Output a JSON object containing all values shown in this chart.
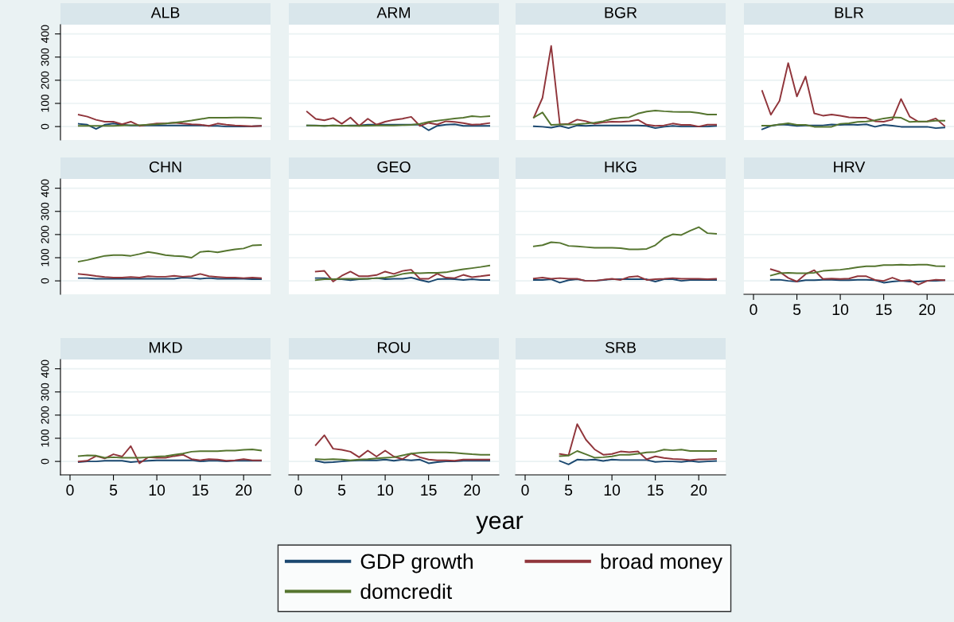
{
  "chart_data": [
    {
      "type": "line",
      "title": "ALB",
      "x": [
        1,
        2,
        3,
        4,
        5,
        6,
        7,
        8,
        9,
        10,
        11,
        12,
        13,
        14,
        15,
        16,
        17,
        18,
        19,
        20,
        21,
        22
      ],
      "xlim": [
        -1.1,
        23.1
      ],
      "ylim": [
        -58,
        440
      ],
      "yticks": [
        0,
        100,
        200,
        300,
        400
      ],
      "grid": "y",
      "tick_labels": "y",
      "series": [
        {
          "color": "#1a476f",
          "values": [
            12,
            8,
            -10,
            8,
            13,
            8,
            5,
            5,
            5,
            5,
            5,
            5,
            5,
            5,
            5,
            3,
            3,
            0,
            0,
            0,
            1,
            3
          ]
        },
        {
          "color": "#90353b",
          "values": [
            51,
            43,
            29,
            21,
            21,
            10,
            21,
            3,
            8,
            13,
            13,
            17,
            13,
            10,
            8,
            3,
            13,
            8,
            5,
            3,
            1,
            3
          ]
        },
        {
          "color": "#55752f",
          "values": [
            3,
            3,
            3,
            3,
            3,
            5,
            6,
            6,
            8,
            10,
            13,
            17,
            21,
            26,
            32,
            38,
            38,
            38,
            39,
            39,
            38,
            36
          ]
        }
      ]
    },
    {
      "type": "line",
      "title": "ARM",
      "x": [
        1,
        2,
        3,
        4,
        5,
        6,
        7,
        8,
        9,
        10,
        11,
        12,
        13,
        14,
        15,
        16,
        17,
        18,
        19,
        20,
        21,
        22
      ],
      "xlim": [
        -1.1,
        23.1
      ],
      "ylim": [
        -58,
        440
      ],
      "yticks": [
        0,
        100,
        200,
        300,
        400
      ],
      "grid": "y",
      "tick_labels": false,
      "series": [
        {
          "color": "#1a476f",
          "values": [
            5,
            5,
            3,
            5,
            3,
            5,
            5,
            8,
            8,
            8,
            8,
            8,
            8,
            8,
            -16,
            3,
            8,
            10,
            3,
            3,
            3,
            3
          ]
        },
        {
          "color": "#90353b",
          "values": [
            64,
            33,
            27,
            37,
            12,
            39,
            3,
            34,
            8,
            21,
            29,
            34,
            42,
            3,
            16,
            9,
            23,
            20,
            15,
            8,
            10,
            15
          ]
        },
        {
          "color": "#55752f",
          "values": [
            5,
            4,
            3,
            5,
            4,
            3,
            3,
            4,
            5,
            5,
            5,
            6,
            7,
            12,
            20,
            25,
            30,
            35,
            38,
            45,
            42,
            45
          ]
        }
      ]
    },
    {
      "type": "line",
      "title": "BGR",
      "x": [
        1,
        2,
        3,
        4,
        5,
        6,
        7,
        8,
        9,
        10,
        11,
        12,
        13,
        14,
        15,
        16,
        17,
        18,
        19,
        20,
        21,
        22
      ],
      "xlim": [
        -1.1,
        23.1
      ],
      "ylim": [
        -58,
        440
      ],
      "yticks": [
        0,
        100,
        200,
        300,
        400
      ],
      "grid": "y",
      "tick_labels": false,
      "series": [
        {
          "color": "#1a476f",
          "values": [
            1,
            -1,
            -5,
            3,
            -7,
            5,
            3,
            5,
            5,
            5,
            5,
            5,
            5,
            3,
            -7,
            -1,
            3,
            0,
            0,
            0,
            0,
            3
          ]
        },
        {
          "color": "#90353b",
          "values": [
            39,
            124,
            348,
            9,
            12,
            30,
            23,
            12,
            18,
            21,
            20,
            23,
            29,
            8,
            3,
            5,
            13,
            7,
            7,
            0,
            8,
            8
          ]
        },
        {
          "color": "#55752f",
          "values": [
            39,
            61,
            7,
            9,
            9,
            10,
            13,
            17,
            23,
            33,
            38,
            40,
            56,
            65,
            69,
            66,
            64,
            63,
            63,
            59,
            52,
            52
          ]
        }
      ]
    },
    {
      "type": "line",
      "title": "BLR",
      "x": [
        1,
        2,
        3,
        4,
        5,
        6,
        7,
        8,
        9,
        10,
        11,
        12,
        13,
        14,
        15,
        16,
        17,
        18,
        19,
        20,
        21,
        22
      ],
      "xlim": [
        -1.1,
        23.1
      ],
      "ylim": [
        -58,
        440
      ],
      "yticks": [
        0,
        100,
        200,
        300,
        400
      ],
      "grid": "y",
      "tick_labels": false,
      "series": [
        {
          "color": "#1a476f",
          "values": [
            -12,
            3,
            9,
            7,
            3,
            5,
            5,
            5,
            9,
            7,
            9,
            7,
            10,
            -1,
            7,
            4,
            -1,
            -1,
            -1,
            -1,
            -7,
            -4
          ]
        },
        {
          "color": "#90353b",
          "values": [
            154,
            51,
            111,
            274,
            130,
            216,
            57,
            47,
            52,
            47,
            40,
            38,
            38,
            23,
            21,
            30,
            119,
            43,
            21,
            22,
            35,
            3
          ]
        },
        {
          "color": "#55752f",
          "values": [
            4,
            4,
            9,
            14,
            7,
            7,
            -1,
            -1,
            -1,
            12,
            14,
            20,
            22,
            27,
            35,
            40,
            38,
            20,
            22,
            22,
            25,
            25
          ]
        }
      ]
    },
    {
      "type": "line",
      "title": "CHN",
      "x": [
        1,
        2,
        3,
        4,
        5,
        6,
        7,
        8,
        9,
        10,
        11,
        12,
        13,
        14,
        15,
        16,
        17,
        18,
        19,
        20,
        21,
        22
      ],
      "xlim": [
        -1.1,
        23.1
      ],
      "ylim": [
        -58,
        440
      ],
      "yticks": [
        0,
        100,
        200,
        300,
        400
      ],
      "grid": "y",
      "tick_labels": "y",
      "series": [
        {
          "color": "#1a476f",
          "values": [
            12,
            12,
            9,
            9,
            9,
            9,
            9,
            9,
            9,
            9,
            9,
            9,
            14,
            12,
            9,
            12,
            9,
            9,
            9,
            9,
            7,
            7
          ]
        },
        {
          "color": "#90353b",
          "values": [
            30,
            26,
            21,
            17,
            14,
            14,
            17,
            14,
            20,
            18,
            18,
            22,
            18,
            20,
            30,
            20,
            17,
            14,
            14,
            12,
            14,
            12
          ]
        },
        {
          "color": "#55752f",
          "values": [
            83,
            90,
            99,
            108,
            111,
            111,
            108,
            116,
            125,
            119,
            111,
            108,
            106,
            100,
            125,
            128,
            123,
            130,
            136,
            140,
            153,
            155
          ]
        }
      ]
    },
    {
      "type": "line",
      "title": "GEO",
      "x": [
        2,
        3,
        4,
        5,
        6,
        7,
        8,
        9,
        10,
        11,
        12,
        13,
        14,
        15,
        16,
        17,
        18,
        19,
        20,
        21,
        22
      ],
      "xlim": [
        -1.1,
        23.1
      ],
      "ylim": [
        -58,
        440
      ],
      "yticks": [
        0,
        100,
        200,
        300,
        400
      ],
      "grid": "y",
      "tick_labels": false,
      "series": [
        {
          "color": "#1a476f",
          "values": [
            12,
            12,
            7,
            7,
            3,
            7,
            9,
            12,
            7,
            9,
            9,
            14,
            4,
            -5,
            7,
            9,
            7,
            4,
            7,
            4,
            4
          ]
        },
        {
          "color": "#90353b",
          "values": [
            40,
            43,
            -3,
            22,
            40,
            20,
            20,
            25,
            40,
            30,
            43,
            48,
            9,
            9,
            31,
            14,
            12,
            26,
            16,
            20,
            25
          ]
        },
        {
          "color": "#55752f",
          "values": [
            3,
            7,
            7,
            9,
            9,
            9,
            9,
            12,
            14,
            20,
            30,
            35,
            33,
            35,
            35,
            37,
            44,
            50,
            55,
            60,
            66
          ]
        }
      ]
    },
    {
      "type": "line",
      "title": "HKG",
      "x": [
        1,
        2,
        3,
        4,
        5,
        6,
        7,
        8,
        9,
        10,
        11,
        12,
        13,
        14,
        15,
        16,
        17,
        18,
        19,
        20,
        21,
        22
      ],
      "xlim": [
        -1.1,
        23.1
      ],
      "ylim": [
        -58,
        440
      ],
      "yticks": [
        0,
        100,
        200,
        300,
        400
      ],
      "grid": "y",
      "tick_labels": false,
      "series": [
        {
          "color": "#1a476f",
          "values": [
            4,
            4,
            7,
            -8,
            3,
            7,
            0,
            0,
            4,
            7,
            7,
            7,
            7,
            7,
            -3,
            7,
            7,
            0,
            4,
            4,
            4,
            4
          ]
        },
        {
          "color": "#90353b",
          "values": [
            10,
            14,
            9,
            12,
            9,
            9,
            0,
            0,
            5,
            9,
            4,
            17,
            20,
            4,
            7,
            9,
            12,
            9,
            9,
            9,
            7,
            9
          ]
        },
        {
          "color": "#55752f",
          "values": [
            149,
            154,
            167,
            164,
            151,
            149,
            146,
            143,
            143,
            143,
            141,
            136,
            136,
            138,
            154,
            185,
            201,
            198,
            216,
            232,
            206,
            203
          ]
        }
      ]
    },
    {
      "type": "line",
      "title": "HRV",
      "x": [
        2,
        3,
        4,
        5,
        6,
        7,
        8,
        9,
        10,
        11,
        12,
        13,
        14,
        15,
        16,
        17,
        18,
        19,
        20,
        21,
        22
      ],
      "xlim": [
        -1.1,
        23.1
      ],
      "ylim": [
        -58,
        440
      ],
      "xticks": [
        0,
        5,
        10,
        15,
        20
      ],
      "yticks": [
        0,
        100,
        200,
        300,
        400
      ],
      "grid": "y",
      "tick_labels": "x",
      "series": [
        {
          "color": "#1a476f",
          "values": [
            5,
            5,
            0,
            -3,
            3,
            3,
            5,
            5,
            3,
            3,
            5,
            5,
            3,
            -8,
            -3,
            0,
            -3,
            -3,
            0,
            0,
            3
          ]
        },
        {
          "color": "#90353b",
          "values": [
            50,
            39,
            13,
            -3,
            29,
            46,
            8,
            10,
            8,
            10,
            20,
            20,
            4,
            0,
            14,
            0,
            3,
            -16,
            0,
            5,
            3
          ]
        },
        {
          "color": "#55752f",
          "values": [
            23,
            33,
            35,
            33,
            33,
            35,
            43,
            46,
            48,
            53,
            59,
            63,
            63,
            68,
            68,
            70,
            68,
            70,
            70,
            64,
            63
          ]
        }
      ]
    },
    {
      "type": "line",
      "title": "MKD",
      "x": [
        1,
        2,
        3,
        4,
        5,
        6,
        7,
        8,
        9,
        10,
        11,
        12,
        13,
        14,
        15,
        16,
        17,
        18,
        19,
        20,
        21,
        22
      ],
      "xlim": [
        -1.1,
        23.1
      ],
      "ylim": [
        -58,
        440
      ],
      "xticks": [
        0,
        5,
        10,
        15,
        20
      ],
      "yticks": [
        0,
        100,
        200,
        300,
        400
      ],
      "grid": "y",
      "series": [
        {
          "color": "#1a476f",
          "values": [
            -3,
            0,
            0,
            3,
            3,
            3,
            -3,
            0,
            3,
            5,
            5,
            5,
            5,
            5,
            0,
            3,
            3,
            0,
            3,
            3,
            3,
            3
          ]
        },
        {
          "color": "#90353b",
          "values": [
            0,
            3,
            23,
            13,
            31,
            21,
            66,
            -8,
            18,
            16,
            16,
            23,
            29,
            10,
            5,
            10,
            8,
            3,
            5,
            10,
            5,
            5
          ]
        },
        {
          "color": "#55752f",
          "values": [
            23,
            26,
            25,
            16,
            18,
            16,
            16,
            16,
            18,
            21,
            23,
            29,
            34,
            42,
            44,
            44,
            44,
            47,
            47,
            50,
            52,
            47
          ]
        }
      ]
    },
    {
      "type": "line",
      "title": "ROU",
      "x": [
        2,
        3,
        4,
        5,
        6,
        7,
        8,
        9,
        10,
        11,
        12,
        13,
        14,
        15,
        16,
        17,
        18,
        19,
        20,
        21,
        22
      ],
      "xlim": [
        -1.1,
        23.1
      ],
      "ylim": [
        -58,
        440
      ],
      "xticks": [
        0,
        5,
        10,
        15,
        20
      ],
      "yticks": [
        0,
        100,
        200,
        300,
        400
      ],
      "grid": "y",
      "tick_labels": "x",
      "series": [
        {
          "color": "#1a476f",
          "values": [
            3,
            -5,
            -3,
            0,
            3,
            5,
            5,
            5,
            8,
            3,
            8,
            5,
            8,
            -8,
            -3,
            0,
            0,
            3,
            3,
            3,
            3
          ]
        },
        {
          "color": "#90353b",
          "values": [
            70,
            113,
            55,
            50,
            42,
            18,
            47,
            21,
            47,
            21,
            10,
            34,
            18,
            8,
            5,
            5,
            3,
            8,
            8,
            8,
            8
          ]
        },
        {
          "color": "#55752f",
          "values": [
            10,
            8,
            10,
            8,
            5,
            8,
            10,
            13,
            16,
            18,
            26,
            34,
            37,
            39,
            39,
            39,
            37,
            34,
            31,
            29,
            29
          ]
        }
      ]
    },
    {
      "type": "line",
      "title": "SRB",
      "xlabel": "year",
      "legend": "bottom",
      "x": [
        4,
        5,
        6,
        7,
        8,
        9,
        10,
        11,
        12,
        13,
        14,
        15,
        16,
        17,
        18,
        19,
        20,
        21,
        22
      ],
      "xlim": [
        -1.1,
        23.1
      ],
      "ylim": [
        -58,
        440
      ],
      "xticks": [
        0,
        5,
        10,
        15,
        20
      ],
      "yticks": [
        0,
        100,
        200,
        300,
        400
      ],
      "grid": "y",
      "tick_labels": "x",
      "series": [
        {
          "name": "GDP growth",
          "color": "#1a476f",
          "values": [
            2,
            -13,
            8,
            6,
            8,
            2,
            8,
            6,
            6,
            6,
            6,
            -2,
            0,
            0,
            -2,
            2,
            -2,
            0,
            2
          ]
        },
        {
          "name": "broad money",
          "color": "#90353b",
          "values": [
            32,
            26,
            161,
            94,
            52,
            29,
            32,
            43,
            40,
            43,
            9,
            22,
            15,
            11,
            9,
            6,
            9,
            9,
            11
          ]
        },
        {
          "name": "domcredit",
          "color": "#55752f",
          "values": [
            23,
            25,
            45,
            31,
            16,
            18,
            22,
            29,
            29,
            33,
            39,
            41,
            51,
            48,
            51,
            45,
            45,
            45,
            45
          ]
        }
      ]
    }
  ]
}
